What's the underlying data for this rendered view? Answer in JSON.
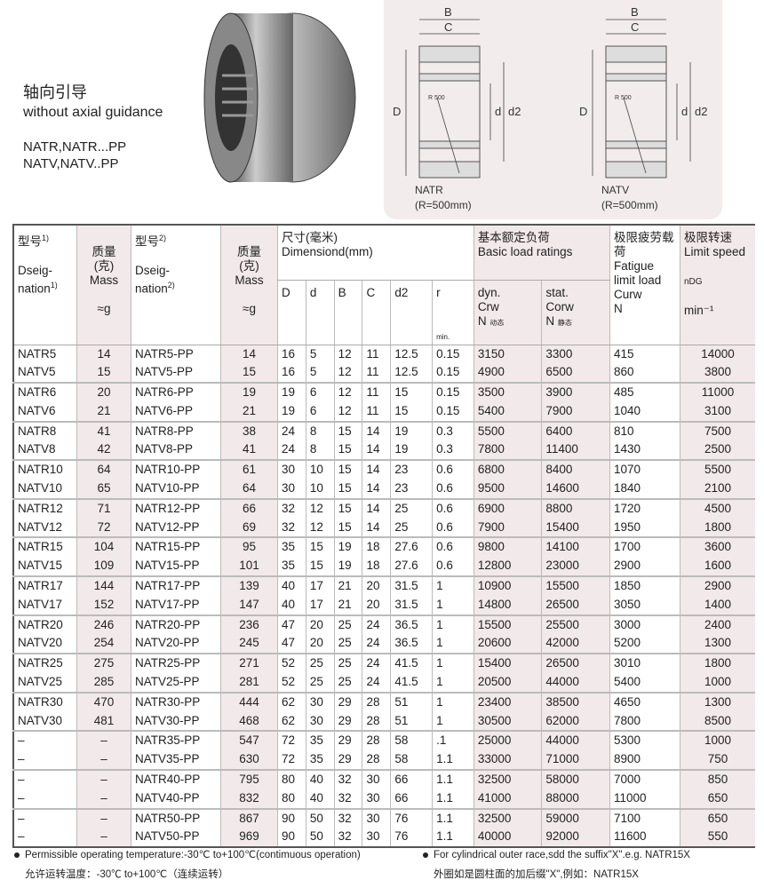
{
  "title": {
    "cn": "轴向引导",
    "en": "without axial guidance",
    "models": [
      "NATR,NATR...PP",
      "NATV,NATV..PP"
    ]
  },
  "diagrams": [
    {
      "name": "NATR",
      "radius": "(R=500mm)",
      "labels": {
        "B": "B",
        "C": "C",
        "D": "D",
        "d": "d",
        "d2": "d2",
        "r": "R 500"
      }
    },
    {
      "name": "NATV",
      "radius": "(R=500mm)",
      "labels": {
        "B": "B",
        "C": "C",
        "D": "D",
        "d": "d",
        "d2": "d2",
        "r": "R 500"
      }
    }
  ],
  "header": {
    "designation1_cn": "型号",
    "designation1_en1": "Dseig-",
    "designation1_en2": "nation",
    "sup1": "1)",
    "mass_cn": "质量",
    "mass_unit_cn": "(克)",
    "mass_en": "Mass",
    "mass_unit": "≈g",
    "designation2_cn": "型号",
    "designation2_en1": "Dseig-",
    "designation2_en2": "nation",
    "sup2": "2)",
    "dim_cn": "尺寸(毫米)",
    "dim_en": "Dimensiond(mm)",
    "dims": [
      "D",
      "d",
      "B",
      "C",
      "d2",
      "r"
    ],
    "r_note": "min.",
    "load_cn": "基本额定负荷",
    "load_en": "Basic load ratings",
    "dyn": "dyn.",
    "dyn_sym": "Crw",
    "dyn_unit": "N",
    "dyn_cn": "动态",
    "stat": "stat.",
    "stat_sym": "Corw",
    "stat_unit": "N",
    "stat_cn": "静态",
    "fatigue_cn": "极限疲劳载荷",
    "fatigue_en": "Fatigue limit load",
    "fatigue_sym": "Curw",
    "fatigue_unit": "N",
    "speed_cn": "极限转速",
    "speed_en": "Limit speed",
    "speed_sym": "nDG",
    "speed_unit": "min⁻¹"
  },
  "rows": [
    [
      "NATR5",
      "14",
      "NATR5-PP",
      "14",
      "16",
      "5",
      "12",
      "11",
      "12.5",
      "0.15",
      "3150",
      "3300",
      "415",
      "14000"
    ],
    [
      "NATV5",
      "15",
      "NATV5-PP",
      "15",
      "16",
      "5",
      "12",
      "11",
      "12.5",
      "0.15",
      "4900",
      "6500",
      "860",
      "3800"
    ],
    [
      "NATR6",
      "20",
      "NATR6-PP",
      "19",
      "19",
      "6",
      "12",
      "11",
      "15",
      "0.15",
      "3500",
      "3900",
      "485",
      "11000"
    ],
    [
      "NATV6",
      "21",
      "NATV6-PP",
      "21",
      "19",
      "6",
      "12",
      "11",
      "15",
      "0.15",
      "5400",
      "7900",
      "1040",
      "3100"
    ],
    [
      "NATR8",
      "41",
      "NATR8-PP",
      "38",
      "24",
      "8",
      "15",
      "14",
      "19",
      "0.3",
      "5500",
      "6400",
      "810",
      "7500"
    ],
    [
      "NATV8",
      "42",
      "NATV8-PP",
      "41",
      "24",
      "8",
      "15",
      "14",
      "19",
      "0.3",
      "7800",
      "11400",
      "1430",
      "2500"
    ],
    [
      "NATR10",
      "64",
      "NATR10-PP",
      "61",
      "30",
      "10",
      "15",
      "14",
      "23",
      "0.6",
      "6800",
      "8400",
      "1070",
      "5500"
    ],
    [
      "NATV10",
      "65",
      "NATV10-PP",
      "64",
      "30",
      "10",
      "15",
      "14",
      "23",
      "0.6",
      "9500",
      "14600",
      "1840",
      "2100"
    ],
    [
      "NATR12",
      "71",
      "NATR12-PP",
      "66",
      "32",
      "12",
      "15",
      "14",
      "25",
      "0.6",
      "6900",
      "8800",
      "1720",
      "4500"
    ],
    [
      "NATV12",
      "72",
      "NATV12-PP",
      "69",
      "32",
      "12",
      "15",
      "14",
      "25",
      "0.6",
      "7900",
      "15400",
      "1950",
      "1800"
    ],
    [
      "NATR15",
      "104",
      "NATR15-PP",
      "95",
      "35",
      "15",
      "19",
      "18",
      "27.6",
      "0.6",
      "9800",
      "14100",
      "1700",
      "3600"
    ],
    [
      "NATV15",
      "109",
      "NATV15-PP",
      "101",
      "35",
      "15",
      "19",
      "18",
      "27.6",
      "0.6",
      "12800",
      "23000",
      "2900",
      "1600"
    ],
    [
      "NATR17",
      "144",
      "NATR17-PP",
      "139",
      "40",
      "17",
      "21",
      "20",
      "31.5",
      "1",
      "10900",
      "15500",
      "1850",
      "2900"
    ],
    [
      "NATV17",
      "152",
      "NATV17-PP",
      "147",
      "40",
      "17",
      "21",
      "20",
      "31.5",
      "1",
      "14800",
      "26500",
      "3050",
      "1400"
    ],
    [
      "NATR20",
      "246",
      "NATR20-PP",
      "236",
      "47",
      "20",
      "25",
      "24",
      "36.5",
      "1",
      "15500",
      "25500",
      "3000",
      "2400"
    ],
    [
      "NATV20",
      "254",
      "NATV20-PP",
      "245",
      "47",
      "20",
      "25",
      "24",
      "36.5",
      "1",
      "20600",
      "42000",
      "5200",
      "1300"
    ],
    [
      "NATR25",
      "275",
      "NATR25-PP",
      "271",
      "52",
      "25",
      "25",
      "24",
      "41.5",
      "1",
      "15400",
      "26500",
      "3010",
      "1800"
    ],
    [
      "NATV25",
      "285",
      "NATV25-PP",
      "281",
      "52",
      "25",
      "25",
      "24",
      "41.5",
      "1",
      "20500",
      "44000",
      "5400",
      "1000"
    ],
    [
      "NATR30",
      "470",
      "NATR30-PP",
      "444",
      "62",
      "30",
      "29",
      "28",
      "51",
      "1",
      "23400",
      "38500",
      "4650",
      "1300"
    ],
    [
      "NATV30",
      "481",
      "NATV30-PP",
      "468",
      "62",
      "30",
      "29",
      "28",
      "51",
      "1",
      "30500",
      "62000",
      "7800",
      "8500"
    ],
    [
      "–",
      "–",
      "NATR35-PP",
      "547",
      "72",
      "35",
      "29",
      "28",
      "58",
      ".1",
      "25000",
      "44000",
      "5300",
      "1000"
    ],
    [
      "–",
      "–",
      "NATV35-PP",
      "630",
      "72",
      "35",
      "29",
      "28",
      "58",
      "1.1",
      "33000",
      "71000",
      "8900",
      "750"
    ],
    [
      "–",
      "–",
      "NATR40-PP",
      "795",
      "80",
      "40",
      "32",
      "30",
      "66",
      "1.1",
      "32500",
      "58000",
      "7000",
      "850"
    ],
    [
      "–",
      "–",
      "NATV40-PP",
      "832",
      "80",
      "40",
      "32",
      "30",
      "66",
      "1.1",
      "41000",
      "88000",
      "11000",
      "650"
    ],
    [
      "–",
      "–",
      "NATR50-PP",
      "867",
      "90",
      "50",
      "32",
      "30",
      "76",
      "1.1",
      "32500",
      "59000",
      "7100",
      "650"
    ],
    [
      "–",
      "–",
      "NATV50-PP",
      "969",
      "90",
      "50",
      "32",
      "30",
      "76",
      "1.1",
      "40000",
      "92000",
      "11600",
      "550"
    ]
  ],
  "notes": {
    "left_en": "Permissible operating temperature:-30℃ to+100℃(contimuous operation)",
    "left_cn": "允许运转温度：-30℃ to+100℃（连续运转）",
    "right_en": "For cylindrical outer race,sdd the suffix\"X\".e.g. NATR15X",
    "right_cn": "外圈如是圆柱面的加后缀\"X\",例如：NATR15X"
  },
  "colors": {
    "shade": "#f2e9ea",
    "panel": "#f3ecec"
  }
}
